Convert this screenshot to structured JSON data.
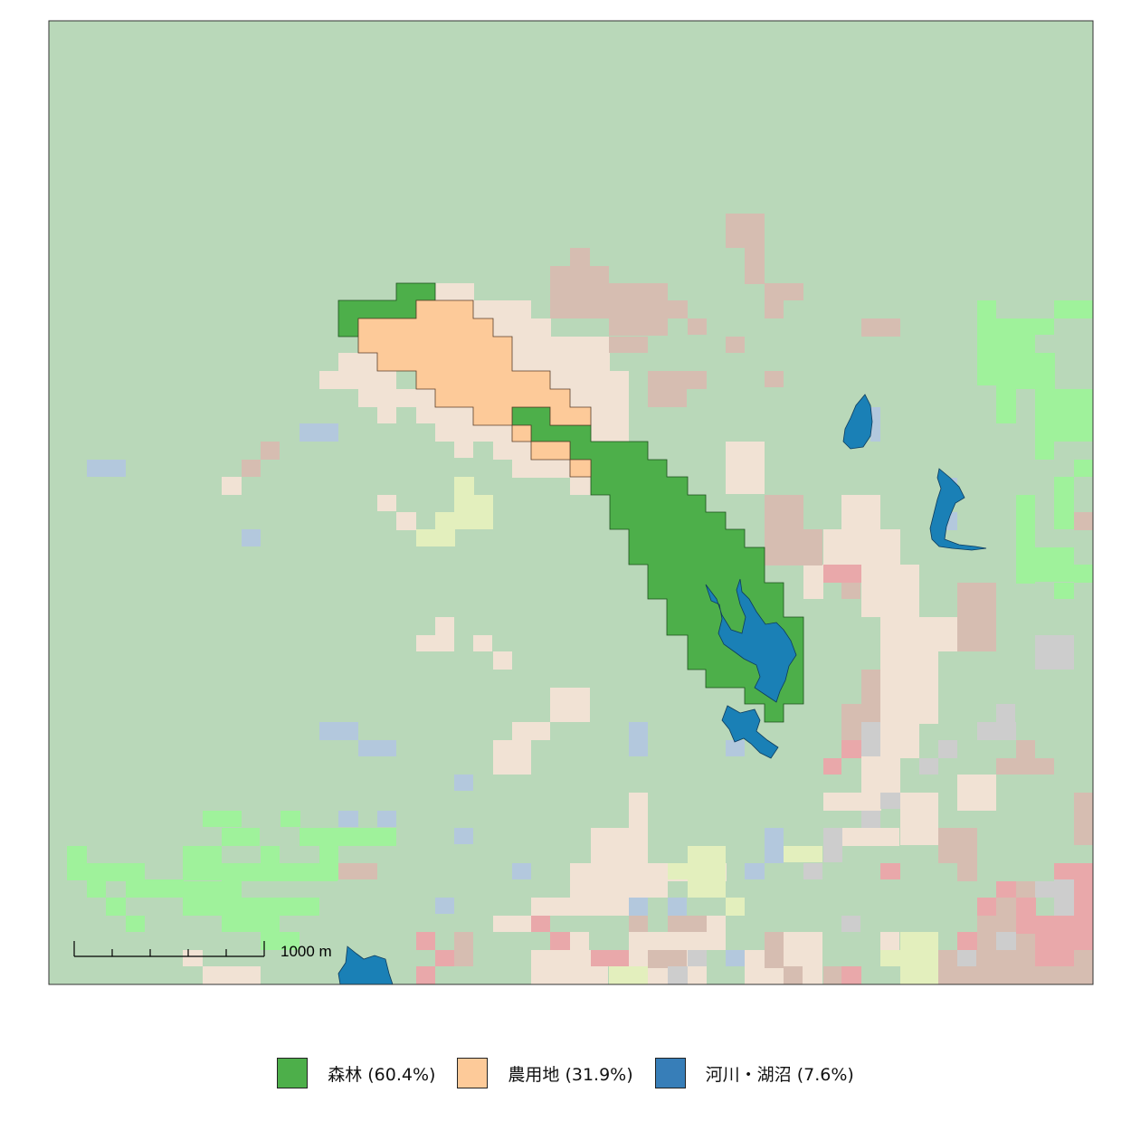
{
  "map": {
    "background_color": "#b9d8b9",
    "scale_bar": {
      "label": "1000 m"
    }
  },
  "legend": {
    "items": [
      {
        "label": "森林 (60.4%)",
        "color": "#4daf4a"
      },
      {
        "label": "農用地 (31.9%)",
        "color": "#fdca99"
      },
      {
        "label": "河川・湖沼 (7.6%)",
        "color": "#377eb8"
      }
    ]
  },
  "background_classes": {
    "forest": "#b9d8b9",
    "farmland": "#f1e2d4",
    "building": "#d6bdb1",
    "water": "#b3c8dd",
    "grass": "#9ff29b",
    "wasteland": "#e3efbd",
    "urban": "#e9a8aa",
    "other": "#cdcdcd"
  }
}
